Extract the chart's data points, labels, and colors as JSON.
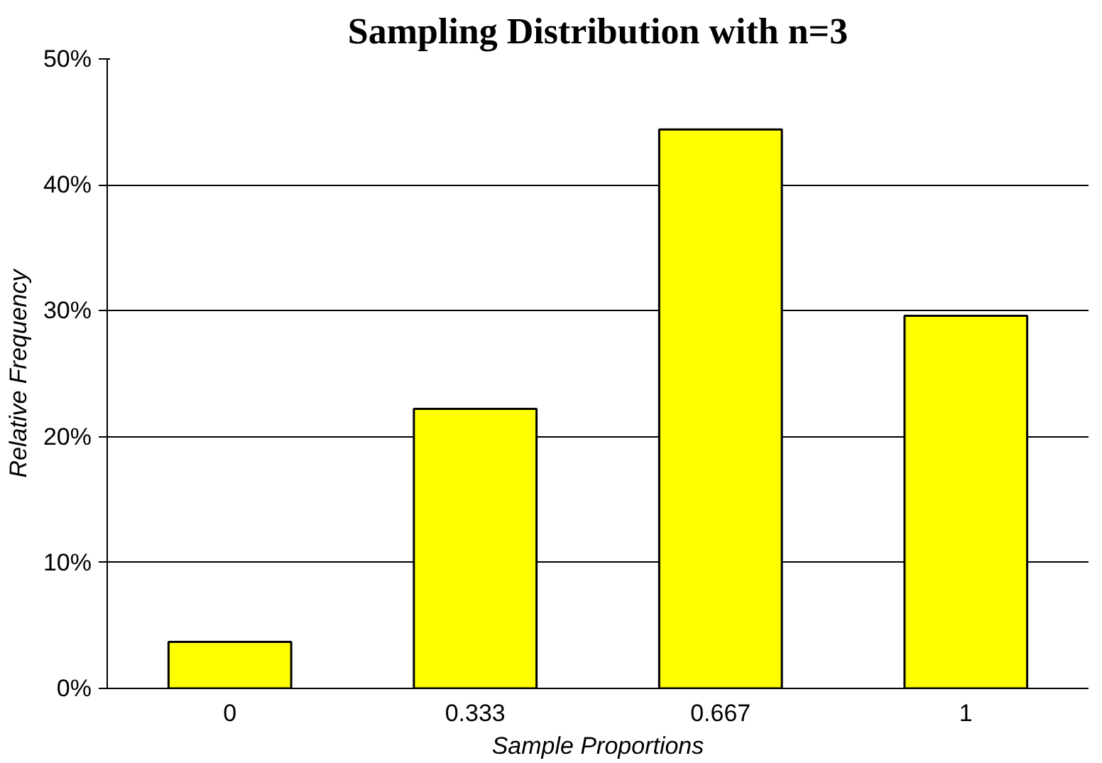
{
  "chart_data": {
    "type": "bar",
    "title": "Sampling Distribution with n=3",
    "xlabel": "Sample Proportions",
    "ylabel": "Relative Frequency",
    "categories": [
      "0",
      "0.333",
      "0.667",
      "1"
    ],
    "values": [
      3.7,
      22.2,
      44.4,
      29.6
    ],
    "color": "#ffff00",
    "ylim": [
      0,
      50
    ],
    "yticks": [
      {
        "value": 0,
        "label": "0%"
      },
      {
        "value": 10,
        "label": "10%"
      },
      {
        "value": 20,
        "label": "20%"
      },
      {
        "value": 30,
        "label": "30%"
      },
      {
        "value": 40,
        "label": "40%"
      },
      {
        "value": 50,
        "label": "50%"
      }
    ],
    "grid": "y"
  }
}
